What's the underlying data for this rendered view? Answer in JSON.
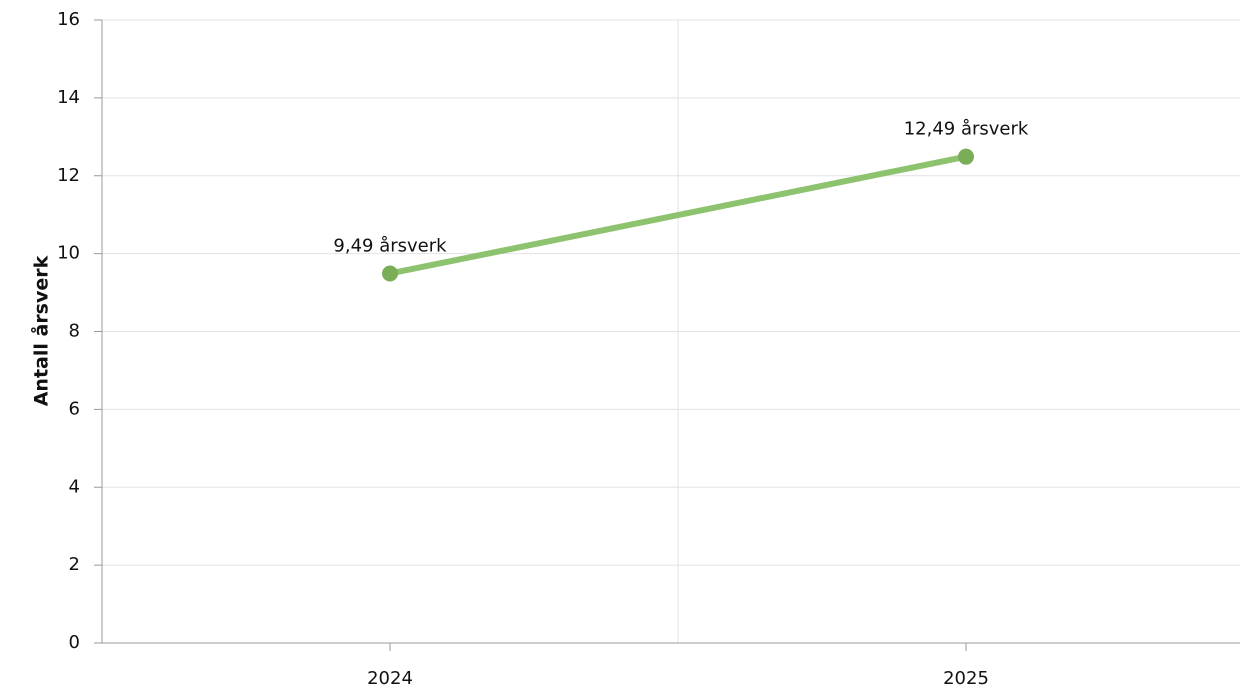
{
  "chart_data": {
    "type": "line",
    "y_label": "Antall årsverk",
    "categories": [
      "2024",
      "2025"
    ],
    "values": [
      9.49,
      12.49
    ],
    "value_labels": [
      "9,49 årsverk",
      "12,49 årsverk"
    ],
    "color": "#8dc26f",
    "marker_color": "#79ad57",
    "ylim": [
      0,
      16
    ],
    "yticks": [
      0,
      2,
      4,
      6,
      8,
      10,
      12,
      14,
      16
    ],
    "grid": true
  }
}
